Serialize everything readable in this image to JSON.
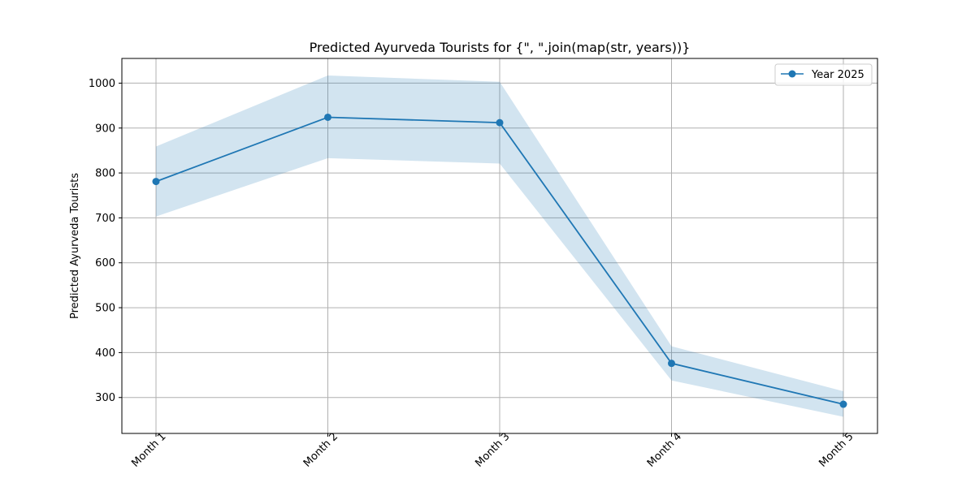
{
  "chart_data": {
    "type": "line",
    "title": "Predicted Ayurveda Tourists for {\", \".join(map(str, years))}",
    "xlabel": "",
    "ylabel": "Predicted Ayurveda Tourists",
    "categories": [
      "Month 1",
      "Month 2",
      "Month 3",
      "Month 4",
      "Month 5"
    ],
    "series": [
      {
        "name": "Year 2025",
        "values": [
          781,
          924,
          912,
          376,
          285
        ],
        "lower": [
          703,
          833,
          821,
          338,
          257
        ],
        "upper": [
          859,
          1017,
          1003,
          414,
          314
        ],
        "color": "#1f77b4",
        "band_color": "#1f77b4",
        "marker": "circle"
      }
    ],
    "ylim": [
      220,
      1055
    ],
    "yticks": [
      300,
      400,
      500,
      600,
      700,
      800,
      900,
      1000
    ],
    "grid": true,
    "legend_position": "top-right"
  }
}
